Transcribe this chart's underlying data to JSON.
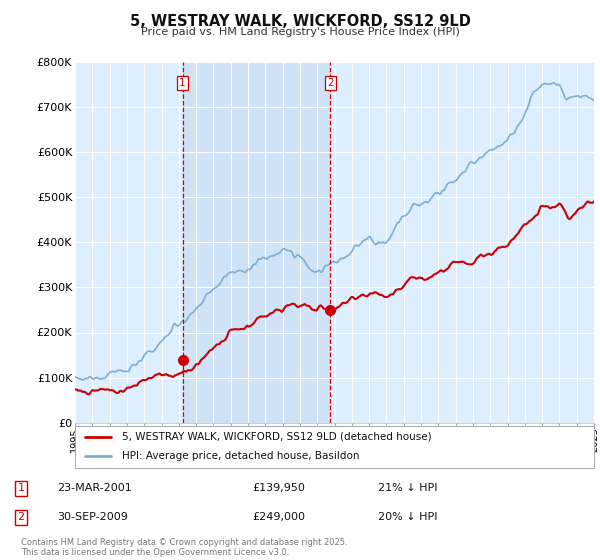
{
  "title": "5, WESTRAY WALK, WICKFORD, SS12 9LD",
  "subtitle": "Price paid vs. HM Land Registry's House Price Index (HPI)",
  "ylabel_ticks": [
    "£0",
    "£100K",
    "£200K",
    "£300K",
    "£400K",
    "£500K",
    "£600K",
    "£700K",
    "£800K"
  ],
  "ylim": [
    0,
    800000
  ],
  "xlim_start": 1995,
  "xlim_end": 2025,
  "purchase1": {
    "date_x": 2001.22,
    "price": 139950,
    "label": "1",
    "text": "23-MAR-2001",
    "amount": "£139,950",
    "pct": "21% ↓ HPI"
  },
  "purchase2": {
    "date_x": 2009.75,
    "price": 249000,
    "label": "2",
    "text": "30-SEP-2009",
    "amount": "£249,000",
    "pct": "20% ↓ HPI"
  },
  "legend_line1": "5, WESTRAY WALK, WICKFORD, SS12 9LD (detached house)",
  "legend_line2": "HPI: Average price, detached house, Basildon",
  "footnote": "Contains HM Land Registry data © Crown copyright and database right 2025.\nThis data is licensed under the Open Government Licence v3.0.",
  "color_price_paid": "#cc0000",
  "color_hpi": "#7eadd4",
  "color_vline": "#cc0000",
  "color_shade": "#ddeeff",
  "background_plot": "#ddeeff",
  "background_fig": "#ffffff",
  "grid_color": "#ffffff"
}
